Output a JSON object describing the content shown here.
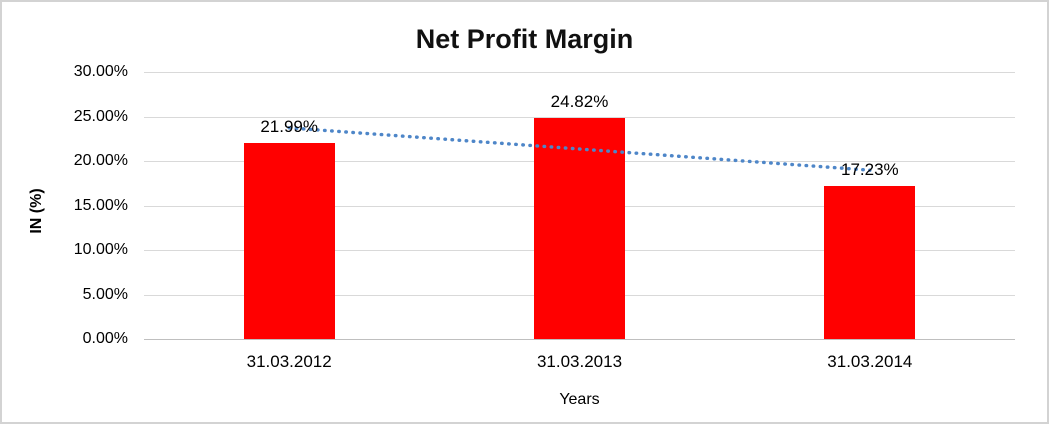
{
  "window": {
    "background_color": "#FFFFFF",
    "frame_border_color": "#D3D3D3"
  },
  "chart_data": {
    "type": "bar",
    "title": "Net Profit Margin",
    "xlabel": "Years",
    "ylabel": "IN (%)",
    "categories": [
      "31.03.2012",
      "31.03.2013",
      "31.03.2014"
    ],
    "values": [
      21.99,
      24.82,
      17.23
    ],
    "value_labels": [
      "21.99%",
      "24.82%",
      "17.23%"
    ],
    "ylim": [
      0,
      30
    ],
    "ytick_step": 5,
    "ytick_labels": [
      "30.00%",
      "25.00%",
      "20.00%",
      "15.00%",
      "10.00%",
      "5.00%",
      "0.00%"
    ],
    "grid": true,
    "legend": false,
    "bar_color": "#FF0000",
    "gridline_color": "#D9D9D9",
    "axisline_color": "#BFBFBF",
    "trendline": {
      "type": "linear",
      "style": "dotted",
      "color": "#4E86C8"
    }
  }
}
